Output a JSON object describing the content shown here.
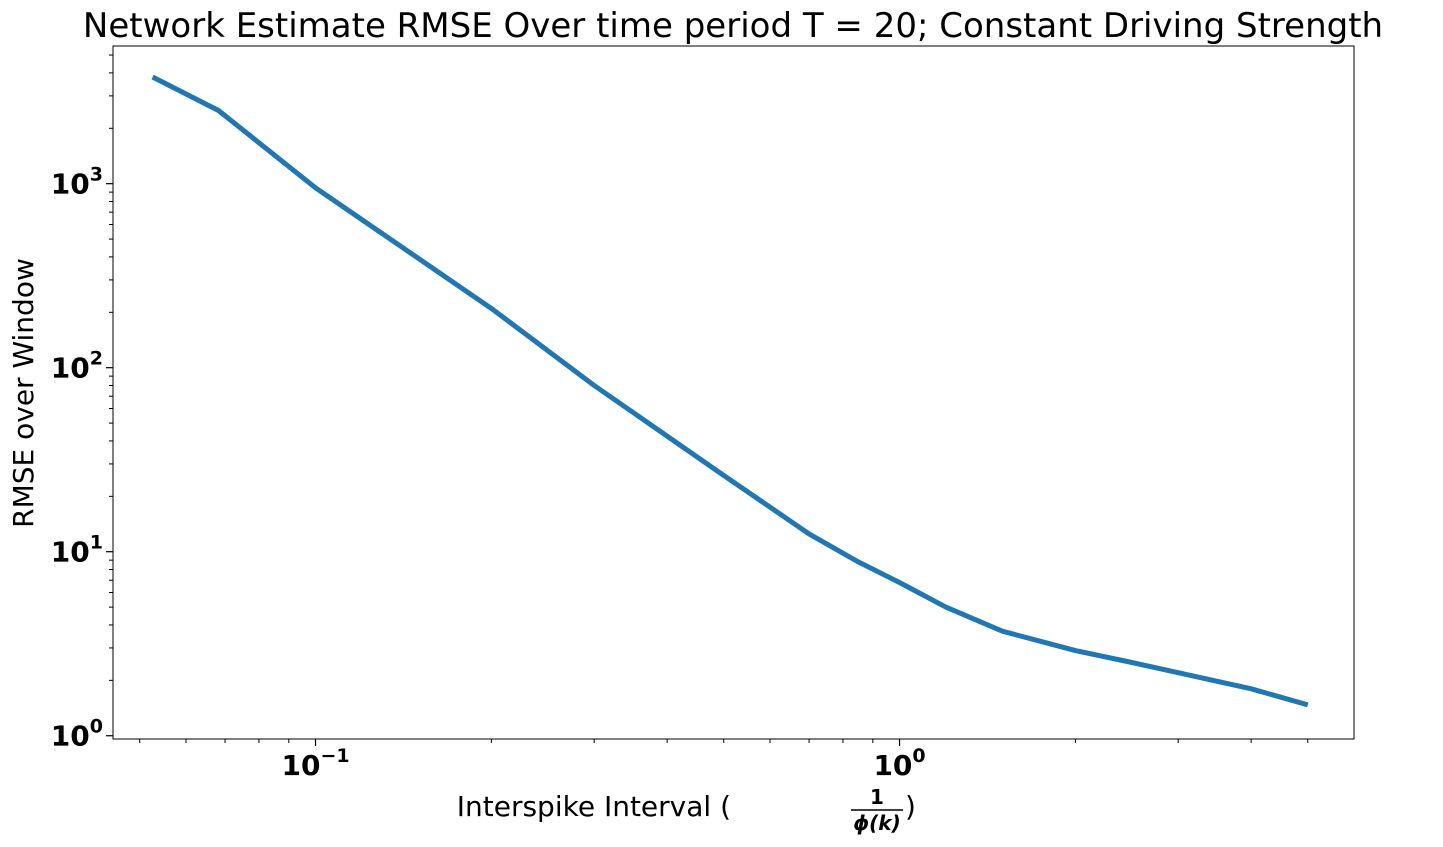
{
  "chart_data": {
    "type": "line",
    "title": "Network Estimate RMSE Over time period T = 20; Constant Driving Strength",
    "xlabel": "Interspike Interval (",
    "xlabel_frac_num": "1",
    "xlabel_frac_den": "ϕ(k)",
    "xlabel_close": ")",
    "ylabel": "RMSE over Window",
    "xscale": "log",
    "yscale": "log",
    "xlim": [
      0.045,
      6.0
    ],
    "ylim": [
      0.96,
      5600
    ],
    "xticks": [
      {
        "value": 0.1,
        "base": "10",
        "exp": "−1"
      },
      {
        "value": 1.0,
        "base": "10",
        "exp": "0"
      }
    ],
    "yticks": [
      {
        "value": 1,
        "base": "10",
        "exp": "0"
      },
      {
        "value": 10,
        "base": "10",
        "exp": "1"
      },
      {
        "value": 100,
        "base": "10",
        "exp": "2"
      },
      {
        "value": 1000,
        "base": "10",
        "exp": "3"
      }
    ],
    "grid": false,
    "series": [
      {
        "color": "#1f77b4",
        "x": [
          0.0526,
          0.0682,
          0.1,
          0.2,
          0.3,
          0.5,
          0.7,
          0.85,
          1.0,
          1.2,
          1.5,
          2.0,
          2.5,
          3.0,
          4.0,
          5.0
        ],
        "y": [
          3800,
          2500,
          950,
          210,
          80,
          26,
          12.5,
          8.8,
          6.8,
          5.0,
          3.7,
          2.9,
          2.5,
          2.2,
          1.8,
          1.47
        ]
      }
    ]
  }
}
